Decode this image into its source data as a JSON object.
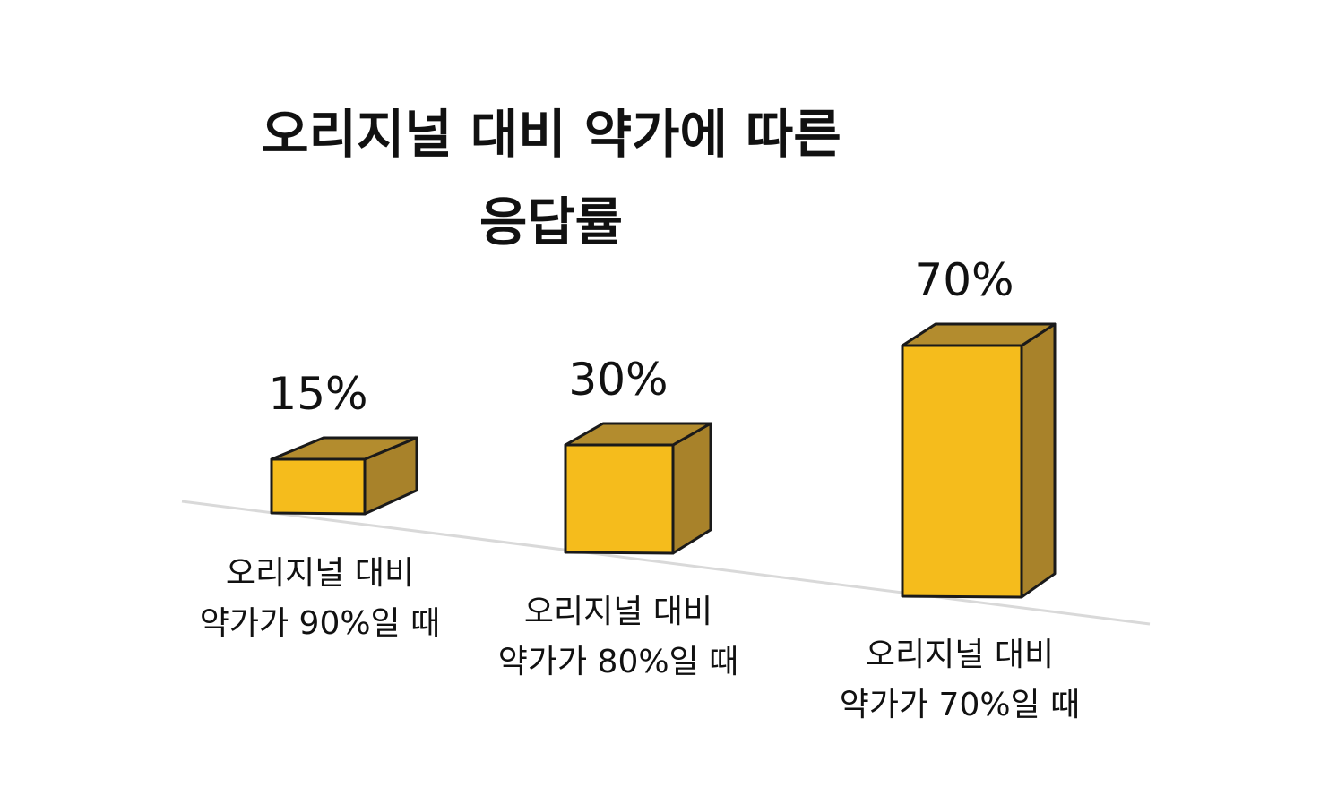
{
  "chart_data": {
    "type": "bar",
    "title_lines": [
      "오리지널 대비 약가에 따른",
      "응답률"
    ],
    "categories": [
      [
        "오리지널 대비",
        "약가가 90%일 때"
      ],
      [
        "오리지널 대비",
        "약가가 80%일 때"
      ],
      [
        "오리지널 대비",
        "약가가 70%일 때"
      ]
    ],
    "values": [
      15,
      30,
      70
    ],
    "value_labels": [
      "15%",
      "30%",
      "70%"
    ],
    "ylim": [
      0,
      80
    ],
    "grid": false,
    "legend": "none",
    "colors": {
      "front": "#F5BC1C",
      "side": "#A8822A",
      "top": "#B38C2E",
      "edge": "#1a1a1a",
      "baseline": "#d9d9d9"
    }
  }
}
